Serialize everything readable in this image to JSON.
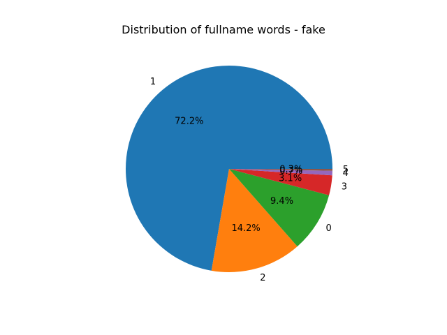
{
  "chart_data": {
    "type": "pie",
    "title": "Distribution of fullname words - fake",
    "categories": [
      "1",
      "2",
      "0",
      "3",
      "4",
      "5"
    ],
    "values": [
      72.2,
      14.2,
      9.4,
      3.1,
      0.7,
      0.3
    ],
    "percent_labels": [
      "72.2%",
      "14.2%",
      "9.4%",
      "3.1%",
      "0.7%",
      "0.3%"
    ],
    "colors": [
      "#1f77b4",
      "#ff7f0e",
      "#2ca02c",
      "#d62728",
      "#9467bd",
      "#8c564b"
    ],
    "start_angle_deg": 0,
    "direction": "counterclockwise",
    "legend": "none"
  }
}
